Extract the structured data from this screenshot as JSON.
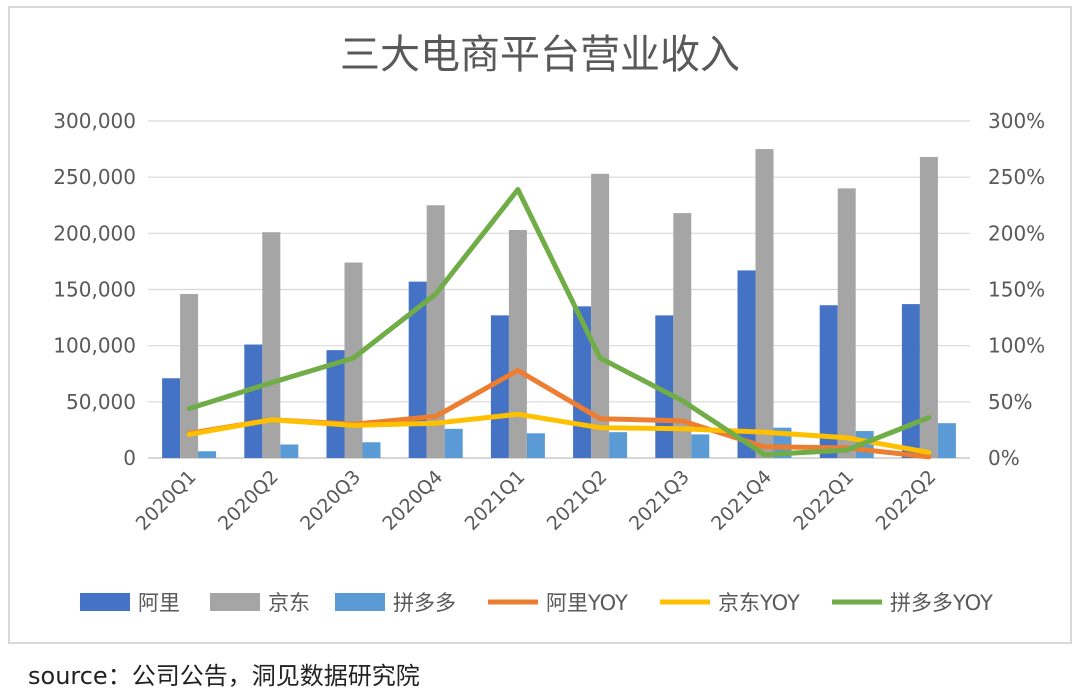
{
  "chart_data": {
    "type": "bar",
    "title": "三大电商平台营业收入",
    "categories": [
      "2020Q1",
      "2020Q2",
      "2020Q3",
      "2020Q4",
      "2021Q1",
      "2021Q2",
      "2021Q3",
      "2021Q4",
      "2022Q1",
      "2022Q2"
    ],
    "series": [
      {
        "name": "阿里",
        "kind": "bar",
        "axis": "left",
        "color": "#4472c4",
        "values": [
          71000,
          101000,
          96000,
          157000,
          127000,
          135000,
          127000,
          167000,
          136000,
          137000
        ]
      },
      {
        "name": "京东",
        "kind": "bar",
        "axis": "left",
        "color": "#a5a5a5",
        "values": [
          146000,
          201000,
          174000,
          225000,
          203000,
          253000,
          218000,
          275000,
          240000,
          268000
        ]
      },
      {
        "name": "拼多多",
        "kind": "bar",
        "axis": "left",
        "color": "#5b9bd5",
        "values": [
          6000,
          12000,
          14000,
          26000,
          22000,
          23000,
          21000,
          27000,
          24000,
          31000
        ]
      },
      {
        "name": "阿里YOY",
        "kind": "line",
        "axis": "right",
        "color": "#ed7d31",
        "values": [
          0.22,
          0.34,
          0.3,
          0.37,
          0.78,
          0.35,
          0.33,
          0.1,
          0.09,
          0.01
        ]
      },
      {
        "name": "京东YOY",
        "kind": "line",
        "axis": "right",
        "color": "#ffc000",
        "values": [
          0.21,
          0.34,
          0.29,
          0.31,
          0.39,
          0.27,
          0.26,
          0.23,
          0.18,
          0.05
        ]
      },
      {
        "name": "拼多多YOY",
        "kind": "line",
        "axis": "right",
        "color": "#70ad47",
        "values": [
          0.44,
          0.67,
          0.89,
          1.46,
          2.39,
          0.89,
          0.51,
          0.03,
          0.07,
          0.36
        ]
      }
    ],
    "ylim_left": [
      0,
      300000
    ],
    "ylim_right": [
      0,
      3
    ],
    "left_ticks": [
      "0",
      "50,000",
      "100,000",
      "150,000",
      "200,000",
      "250,000",
      "300,000"
    ],
    "right_ticks": [
      "0%",
      "50%",
      "100%",
      "150%",
      "200%",
      "250%",
      "300%"
    ],
    "grid": true,
    "legend_position": "bottom"
  },
  "source": "source：公司公告，洞见数据研究院"
}
